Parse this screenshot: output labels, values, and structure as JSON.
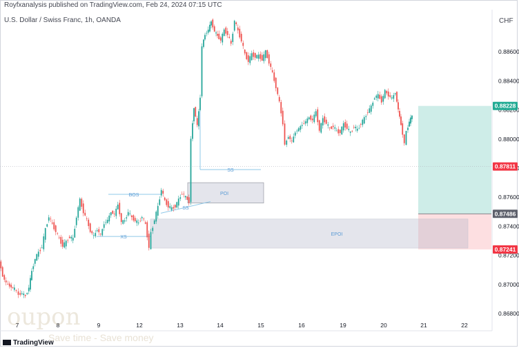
{
  "header": {
    "published_line": "Royfxanalysis published on TradingView.com, Feb 24, 2024 07:15 UTC",
    "symbol_line": "U.S. Dollar / Swiss Franc, 1h, OANDA",
    "currency": "CHF"
  },
  "branding": {
    "tradingview_logo": "TradingView",
    "watermark_title": "oupon",
    "watermark_subtitle": "Save time - Save money"
  },
  "chart_data": {
    "type": "candlestick",
    "x_ticks": [
      "7",
      "8",
      "9",
      "12",
      "13",
      "14",
      "15",
      "16",
      "19",
      "20",
      "21",
      "22"
    ],
    "y_ticks": [
      0.868,
      0.87,
      0.872,
      0.874,
      0.876,
      0.878,
      0.88,
      0.882,
      0.884,
      0.886
    ],
    "y_tick_labels": [
      "0.86800",
      "0.87000",
      "0.87200",
      "0.87400",
      "0.87600",
      "0.87800",
      "0.88000",
      "0.88200",
      "0.88400",
      "0.88600"
    ],
    "ylim": [
      0.8674,
      0.8892
    ],
    "price_labels": [
      {
        "value": 0.88228,
        "text": "0.88228",
        "color": "#22ab94"
      },
      {
        "value": 0.87811,
        "text": "0.87811",
        "color": "#f23645"
      },
      {
        "value": 0.87486,
        "text": "0.87486",
        "color": "#5d606b"
      },
      {
        "value": 0.87241,
        "text": "0.87241",
        "color": "#f23645"
      }
    ],
    "annotations": [
      "BOS",
      "XS",
      "SS",
      "SS",
      "POI",
      "EPOI"
    ],
    "series_path": [
      [
        0,
        0.8716
      ],
      [
        5,
        0.8706
      ],
      [
        10,
        0.8701
      ],
      [
        15,
        0.8699
      ],
      [
        22,
        0.8697
      ],
      [
        28,
        0.8693
      ],
      [
        33,
        0.8694
      ],
      [
        38,
        0.8692
      ],
      [
        43,
        0.8698
      ],
      [
        47,
        0.8709
      ],
      [
        52,
        0.8718
      ],
      [
        57,
        0.8722
      ],
      [
        62,
        0.8726
      ],
      [
        67,
        0.8738
      ],
      [
        72,
        0.8747
      ],
      [
        77,
        0.8741
      ],
      [
        82,
        0.8737
      ],
      [
        87,
        0.8731
      ],
      [
        92,
        0.8727
      ],
      [
        97,
        0.8729
      ],
      [
        102,
        0.8733
      ],
      [
        107,
        0.8731
      ],
      [
        112,
        0.8747
      ],
      [
        117,
        0.8758
      ],
      [
        122,
        0.875
      ],
      [
        127,
        0.8744
      ],
      [
        132,
        0.8737
      ],
      [
        137,
        0.8733
      ],
      [
        142,
        0.8738
      ],
      [
        147,
        0.8734
      ],
      [
        152,
        0.8742
      ],
      [
        157,
        0.8744
      ],
      [
        162,
        0.875
      ],
      [
        167,
        0.8748
      ],
      [
        172,
        0.8755
      ],
      [
        177,
        0.8743
      ],
      [
        182,
        0.8744
      ],
      [
        187,
        0.875
      ],
      [
        192,
        0.8746
      ],
      [
        197,
        0.8744
      ],
      [
        202,
        0.8742
      ],
      [
        207,
        0.8747
      ],
      [
        212,
        0.8741
      ],
      [
        217,
        0.8726
      ],
      [
        220,
        0.8735
      ],
      [
        225,
        0.8745
      ],
      [
        230,
        0.8753
      ],
      [
        235,
        0.8766
      ],
      [
        240,
        0.8757
      ],
      [
        245,
        0.8754
      ],
      [
        250,
        0.8752
      ],
      [
        255,
        0.8754
      ],
      [
        260,
        0.8758
      ],
      [
        265,
        0.8763
      ],
      [
        270,
        0.876
      ],
      [
        275,
        0.8757
      ],
      [
        278,
        0.88
      ],
      [
        282,
        0.8822
      ],
      [
        287,
        0.8809
      ],
      [
        291,
        0.8829
      ],
      [
        294,
        0.8864
      ],
      [
        298,
        0.8872
      ],
      [
        303,
        0.8875
      ],
      [
        307,
        0.8881
      ],
      [
        312,
        0.8874
      ],
      [
        316,
        0.8871
      ],
      [
        321,
        0.8868
      ],
      [
        326,
        0.8875
      ],
      [
        331,
        0.8872
      ],
      [
        336,
        0.8865
      ],
      [
        341,
        0.8882
      ],
      [
        346,
        0.8874
      ],
      [
        351,
        0.8868
      ],
      [
        356,
        0.8858
      ],
      [
        361,
        0.8854
      ],
      [
        366,
        0.8858
      ],
      [
        371,
        0.8857
      ],
      [
        376,
        0.8857
      ],
      [
        381,
        0.8855
      ],
      [
        386,
        0.886
      ],
      [
        391,
        0.8853
      ],
      [
        396,
        0.8845
      ],
      [
        401,
        0.8836
      ],
      [
        406,
        0.8825
      ],
      [
        411,
        0.8811
      ],
      [
        414,
        0.8796
      ],
      [
        419,
        0.8802
      ],
      [
        424,
        0.8798
      ],
      [
        429,
        0.8805
      ],
      [
        434,
        0.8807
      ],
      [
        439,
        0.881
      ],
      [
        444,
        0.8812
      ],
      [
        449,
        0.8815
      ],
      [
        454,
        0.8813
      ],
      [
        459,
        0.8819
      ],
      [
        464,
        0.8806
      ],
      [
        469,
        0.8814
      ],
      [
        474,
        0.8811
      ],
      [
        479,
        0.8807
      ],
      [
        484,
        0.8809
      ],
      [
        489,
        0.8805
      ],
      [
        494,
        0.8805
      ],
      [
        499,
        0.881
      ],
      [
        504,
        0.8808
      ],
      [
        509,
        0.8804
      ],
      [
        514,
        0.8809
      ],
      [
        519,
        0.8806
      ],
      [
        524,
        0.8811
      ],
      [
        529,
        0.8814
      ],
      [
        534,
        0.8819
      ],
      [
        539,
        0.8822
      ],
      [
        544,
        0.8829
      ],
      [
        549,
        0.883
      ],
      [
        554,
        0.8826
      ],
      [
        559,
        0.8833
      ],
      [
        564,
        0.883
      ],
      [
        569,
        0.8828
      ],
      [
        574,
        0.8832
      ],
      [
        578,
        0.882
      ],
      [
        582,
        0.881
      ],
      [
        587,
        0.8797
      ],
      [
        590,
        0.8805
      ],
      [
        594,
        0.8812
      ],
      [
        598,
        0.8816
      ]
    ]
  }
}
